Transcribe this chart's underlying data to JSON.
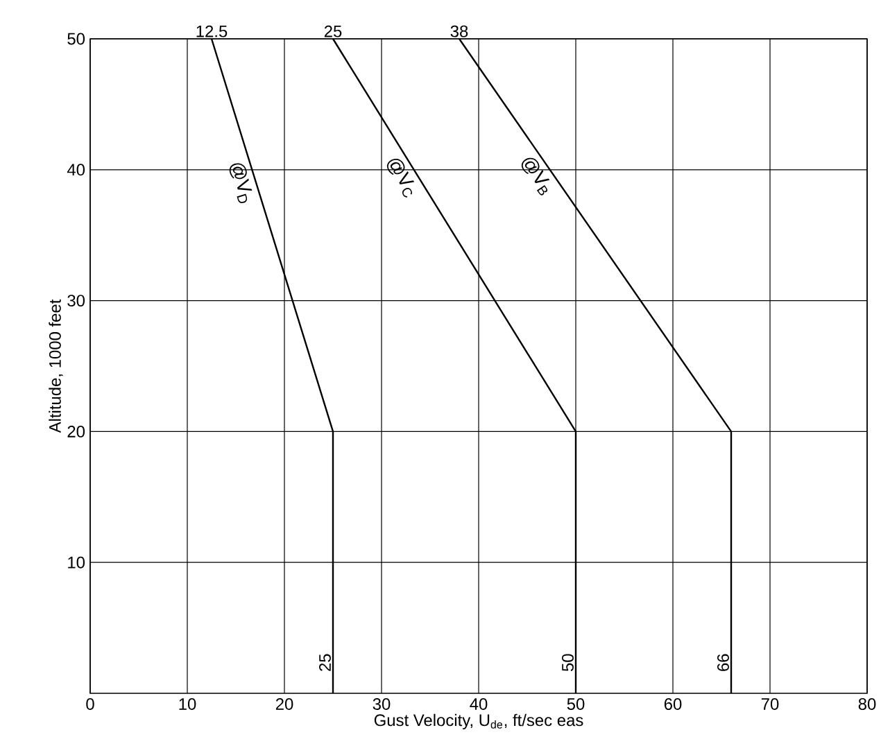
{
  "chart_data": {
    "type": "line",
    "xlabel": "Gust Velocity, U$_{de}$,  ft/sec eas",
    "ylabel": "Altitude,  1000 feet",
    "xlim": [
      0,
      80
    ],
    "xticks": [
      0,
      10,
      20,
      30,
      40,
      50,
      60,
      70,
      80
    ],
    "ylim": [
      0,
      50
    ],
    "yticks": [
      10,
      20,
      30,
      40,
      50
    ],
    "grid": true,
    "legend": false,
    "marker": "none",
    "line_style": "solid",
    "series": [
      {
        "name": "@V$_{D}$",
        "color": "#000000",
        "x": [
          25,
          25,
          12.5
        ],
        "values": [
          0,
          20,
          50
        ]
      },
      {
        "name": "@V$_{C}$",
        "color": "#000000",
        "x": [
          50,
          50,
          25
        ],
        "values": [
          0,
          20,
          50
        ]
      },
      {
        "name": "@V$_{B}$",
        "color": "#000000",
        "x": [
          66,
          66,
          38
        ],
        "values": [
          0,
          20,
          50
        ]
      }
    ],
    "annotations": [
      {
        "text": "12.5",
        "x": 12.5,
        "y": 50
      },
      {
        "text": "25",
        "x": 25,
        "y": 50
      },
      {
        "text": "38",
        "x": 38,
        "y": 50
      },
      {
        "text": "25",
        "x": 25,
        "y": 0
      },
      {
        "text": "50",
        "x": 50,
        "y": 0
      },
      {
        "text": "66",
        "x": 66,
        "y": 0
      }
    ]
  }
}
